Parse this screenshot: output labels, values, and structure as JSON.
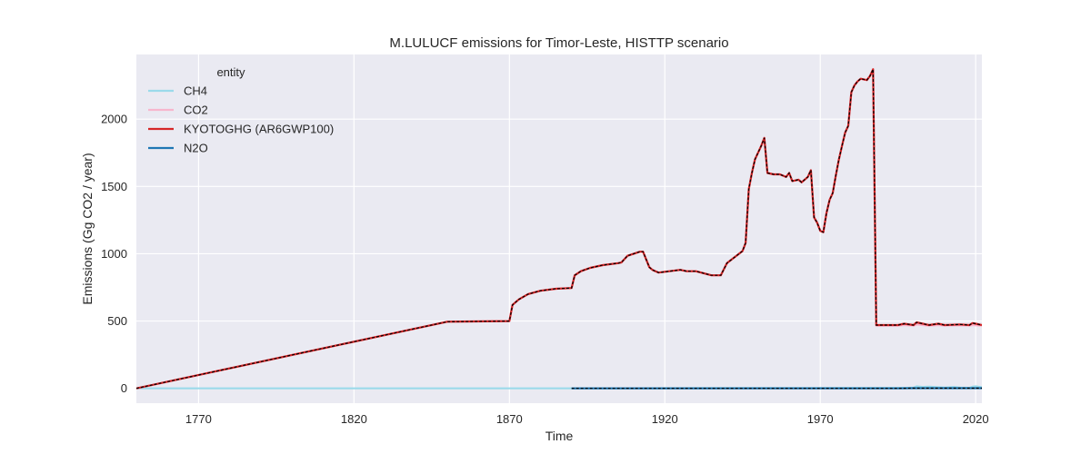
{
  "colors": {
    "background": "#ffffff",
    "plot_background": "#eaeaf2",
    "grid": "#ffffff",
    "ch4": "#9bdaea",
    "co2": "#f7b6cd",
    "kyotoghg": "#d62728",
    "n2o": "#1f77b4",
    "overlay": "#000000"
  },
  "chart_data": {
    "type": "line",
    "title": "M.LULUCF emissions for Timor-Leste, HISTTP scenario",
    "xlabel": "Time",
    "ylabel": "Emissions (Gg CO2 / year)",
    "xlim": [
      1750,
      2022
    ],
    "ylim": [
      -110,
      2480
    ],
    "x_ticks": [
      1770,
      1820,
      1870,
      1920,
      1970,
      2020
    ],
    "x_tick_labels": [
      "1770",
      "1820",
      "1870",
      "1920",
      "1970",
      "2020"
    ],
    "y_ticks": [
      0,
      500,
      1000,
      1500,
      2000
    ],
    "y_tick_labels": [
      "0",
      "500",
      "1000",
      "1500",
      "2000"
    ],
    "grid": true,
    "legend": {
      "title": "entity",
      "placement": "top-left",
      "entries": [
        "CH4",
        "CO2",
        "KYOTOGHG (AR6GWP100)",
        "N2O"
      ]
    },
    "series": [
      {
        "name": "KYOTOGHG (AR6GWP100)",
        "color_key": "kyotoghg",
        "overlay_dashed": true,
        "x": [
          1750,
          1850,
          1870,
          1871,
          1873,
          1876,
          1880,
          1885,
          1890,
          1891,
          1893,
          1896,
          1900,
          1905,
          1906,
          1908,
          1910,
          1912,
          1913,
          1915,
          1916,
          1918,
          1925,
          1927,
          1930,
          1935,
          1936,
          1937,
          1938,
          1940,
          1945,
          1946,
          1947,
          1948,
          1949,
          1951,
          1952,
          1953,
          1955,
          1957,
          1959,
          1960,
          1961,
          1963,
          1964,
          1966,
          1967,
          1968,
          1969,
          1970,
          1971,
          1972,
          1973,
          1974,
          1975,
          1976,
          1977,
          1978,
          1979,
          1980,
          1981,
          1982,
          1983,
          1985,
          1986,
          1987,
          1988,
          1995,
          1997,
          2000,
          2001,
          2003,
          2005,
          2008,
          2010,
          2015,
          2018,
          2019,
          2020,
          2022
        ],
        "values": [
          0,
          495,
          500,
          620,
          660,
          700,
          725,
          740,
          745,
          840,
          870,
          895,
          915,
          930,
          935,
          985,
          1000,
          1015,
          1015,
          900,
          880,
          860,
          880,
          870,
          870,
          840,
          840,
          840,
          840,
          930,
          1020,
          1080,
          1480,
          1600,
          1700,
          1800,
          1860,
          1600,
          1590,
          1590,
          1570,
          1600,
          1540,
          1550,
          1530,
          1570,
          1620,
          1270,
          1230,
          1170,
          1160,
          1300,
          1400,
          1450,
          1580,
          1700,
          1800,
          1900,
          1950,
          2200,
          2250,
          2280,
          2300,
          2290,
          2320,
          2370,
          470,
          470,
          480,
          470,
          490,
          480,
          470,
          480,
          470,
          475,
          470,
          485,
          480,
          470
        ]
      },
      {
        "name": "CO2",
        "color_key": "co2",
        "overlay_dashed": false,
        "x": [
          1750,
          1850,
          1870,
          1871,
          1873,
          1876,
          1880,
          1885,
          1890,
          1891,
          1893,
          1896,
          1900,
          1905,
          1906,
          1908,
          1910,
          1912,
          1913,
          1915,
          1916,
          1918,
          1925,
          1927,
          1930,
          1935,
          1936,
          1937,
          1938,
          1940,
          1945,
          1946,
          1947,
          1948,
          1949,
          1951,
          1952,
          1953,
          1955,
          1957,
          1959,
          1960,
          1961,
          1963,
          1964,
          1966,
          1967,
          1968,
          1969,
          1970,
          1971,
          1972,
          1973,
          1974,
          1975,
          1976,
          1977,
          1978,
          1979,
          1980,
          1981,
          1982,
          1983,
          1985,
          1986,
          1987,
          1988,
          1995,
          1997,
          2000,
          2001,
          2003,
          2005,
          2008,
          2010,
          2015,
          2018,
          2019,
          2020,
          2022
        ],
        "values": [
          0,
          495,
          500,
          620,
          660,
          700,
          725,
          740,
          745,
          840,
          870,
          895,
          915,
          930,
          935,
          985,
          1000,
          1015,
          1015,
          900,
          880,
          860,
          880,
          870,
          870,
          840,
          840,
          840,
          840,
          930,
          1020,
          1080,
          1480,
          1600,
          1700,
          1800,
          1860,
          1600,
          1590,
          1590,
          1570,
          1600,
          1540,
          1550,
          1530,
          1570,
          1620,
          1270,
          1230,
          1170,
          1160,
          1300,
          1400,
          1450,
          1580,
          1700,
          1800,
          1900,
          1950,
          2200,
          2250,
          2280,
          2300,
          2290,
          2320,
          2370,
          465,
          465,
          470,
          465,
          475,
          470,
          465,
          470,
          465,
          468,
          465,
          470,
          468,
          465
        ]
      },
      {
        "name": "CH4",
        "color_key": "ch4",
        "overlay_dashed": false,
        "x": [
          1750,
          1890,
          1950,
          1988,
          1995,
          1998,
          2000,
          2001,
          2003,
          2005,
          2008,
          2010,
          2013,
          2015,
          2018,
          2019,
          2020,
          2022
        ],
        "values": [
          0,
          0,
          2,
          3,
          3,
          4,
          5,
          15,
          10,
          12,
          8,
          5,
          10,
          6,
          4,
          12,
          15,
          8
        ]
      },
      {
        "name": "N2O",
        "color_key": "n2o",
        "overlay_dashed": true,
        "x": [
          1890,
          1950,
          1988,
          1995,
          2000,
          2005,
          2010,
          2015,
          2020,
          2022
        ],
        "values": [
          0,
          0,
          0,
          0,
          1,
          1,
          1,
          1,
          1,
          1
        ]
      }
    ]
  }
}
